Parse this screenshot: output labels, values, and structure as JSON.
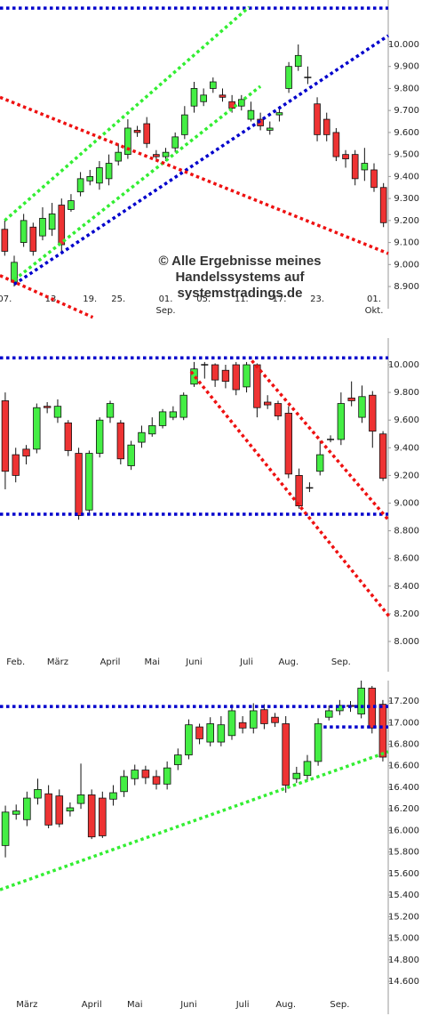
{
  "chart_data": [
    {
      "type": "candlestick",
      "up_color": "#44ee44",
      "down_color": "#ee3333",
      "annotation": [
        "© Alle Ergebnisse meines",
        "Handelssystems auf",
        "systemstradings.de"
      ],
      "categories": [
        "07.",
        null,
        null,
        null,
        null,
        "13.",
        null,
        null,
        null,
        "19.",
        null,
        null,
        "25.",
        null,
        null,
        null,
        null,
        "01.\nSep.",
        null,
        null,
        null,
        "05.",
        null,
        null,
        null,
        "11.",
        null,
        null,
        null,
        "17.",
        null,
        null,
        null,
        "23.",
        null,
        null,
        null,
        null,
        null,
        "01.\nOkt.",
        null
      ],
      "open": [
        9160,
        8920,
        9100,
        9170,
        9130,
        9160,
        9270,
        9250,
        9330,
        9380,
        9370,
        9390,
        9470,
        9500,
        9610,
        9640,
        9500,
        9490,
        9530,
        9590,
        9720,
        9740,
        9800,
        9770,
        9740,
        9720,
        9660,
        9660,
        9610,
        9680,
        9800,
        9900,
        9850,
        9730,
        9660,
        9600,
        9500,
        9500,
        9430,
        9430,
        9350
      ],
      "high": [
        9200,
        9040,
        9230,
        9190,
        9260,
        9280,
        9300,
        9320,
        9420,
        9430,
        9470,
        9500,
        9550,
        9660,
        9630,
        9670,
        9520,
        9530,
        9600,
        9720,
        9830,
        9800,
        9850,
        9800,
        9770,
        9770,
        9740,
        9690,
        9650,
        9720,
        9920,
        10000,
        9900,
        9760,
        9690,
        9620,
        9520,
        9520,
        9530,
        9460,
        9370
      ],
      "low": [
        9040,
        8900,
        9080,
        9040,
        9110,
        9130,
        9060,
        9240,
        9310,
        9360,
        9340,
        9360,
        9450,
        9480,
        9580,
        9530,
        9470,
        9470,
        9510,
        9570,
        9690,
        9720,
        9780,
        9740,
        9690,
        9700,
        9650,
        9610,
        9590,
        9650,
        9780,
        9880,
        9820,
        9560,
        9560,
        9470,
        9440,
        9360,
        9380,
        9330,
        9170
      ],
      "close": [
        9060,
        9010,
        9200,
        9060,
        9210,
        9230,
        9090,
        9290,
        9390,
        9400,
        9440,
        9460,
        9510,
        9620,
        9600,
        9550,
        9490,
        9510,
        9580,
        9680,
        9800,
        9770,
        9830,
        9760,
        9710,
        9750,
        9700,
        9630,
        9620,
        9690,
        9900,
        9950,
        9850,
        9590,
        9590,
        9490,
        9480,
        9390,
        9460,
        9350,
        9190
      ],
      "ylim": [
        8880,
        10202
      ],
      "yticks": [
        {
          "value": 8900,
          "label": "8.900"
        },
        {
          "value": 9000,
          "label": "9.000"
        },
        {
          "value": 9100,
          "label": "9.100"
        },
        {
          "value": 9200,
          "label": "9.200"
        },
        {
          "value": 9300,
          "label": "9.300"
        },
        {
          "value": 9400,
          "label": "9.400"
        },
        {
          "value": 9500,
          "label": "9.500"
        },
        {
          "value": 9600,
          "label": "9.600"
        },
        {
          "value": 9700,
          "label": "9.700"
        },
        {
          "value": 9800,
          "label": "9.800"
        },
        {
          "value": 9900,
          "label": "9.900"
        },
        {
          "value": 10000,
          "label": "10.000"
        }
      ],
      "trend_lines": [
        {
          "color": "#0000cc",
          "x": [
            -0.5,
            40.5
          ],
          "y": [
            10165,
            10165
          ]
        },
        {
          "color": "#33ee33",
          "x": [
            0,
            25.8
          ],
          "y": [
            9200,
            10170
          ]
        },
        {
          "color": "#33ee33",
          "x": [
            1,
            27
          ],
          "y": [
            8930,
            9810
          ]
        },
        {
          "color": "#0000cc",
          "x": [
            1,
            40.5
          ],
          "y": [
            8910,
            10040
          ]
        },
        {
          "color": "#ee1111",
          "x": [
            -0.5,
            40.5
          ],
          "y": [
            9760,
            9050
          ]
        },
        {
          "color": "#ee1111",
          "x": [
            -0.5,
            9.3
          ],
          "y": [
            8950,
            8760
          ]
        }
      ]
    },
    {
      "type": "candlestick",
      "up_color": "#44ee44",
      "down_color": "#ee3333",
      "categories": [
        null,
        "Feb.",
        null,
        null,
        null,
        "März",
        null,
        null,
        null,
        null,
        "April",
        null,
        null,
        null,
        "Mai",
        null,
        null,
        null,
        "Juni",
        null,
        null,
        null,
        null,
        "Juli",
        null,
        null,
        null,
        "Aug.",
        null,
        null,
        null,
        null,
        "Sep.",
        null,
        null,
        null,
        null
      ],
      "open": [
        9740,
        9350,
        9390,
        9390,
        9700,
        9620,
        9580,
        9360,
        8950,
        9360,
        9620,
        9580,
        9270,
        9440,
        9500,
        9560,
        9620,
        9620,
        9860,
        10000,
        10000,
        9960,
        10000,
        9840,
        10000,
        9730,
        9720,
        9650,
        9200,
        9110,
        9230,
        9460,
        9460,
        9760,
        9620,
        9780,
        9500
      ],
      "high": [
        9800,
        9400,
        9420,
        9720,
        9730,
        9750,
        9600,
        9400,
        9380,
        9620,
        9740,
        9600,
        9450,
        9560,
        9620,
        9680,
        9700,
        9800,
        10020,
        10020,
        10010,
        10000,
        10020,
        10020,
        10010,
        9780,
        9740,
        9700,
        9250,
        9150,
        9450,
        9490,
        9800,
        9880,
        9850,
        9810,
        9520
      ],
      "low": [
        9100,
        9150,
        9280,
        9360,
        9650,
        9580,
        9340,
        8880,
        8930,
        9330,
        9580,
        9280,
        9240,
        9400,
        9480,
        9540,
        9600,
        9600,
        9840,
        9900,
        9840,
        9830,
        9780,
        9800,
        9620,
        9680,
        9600,
        9180,
        8960,
        9080,
        9200,
        9440,
        9420,
        9700,
        9580,
        9400,
        9160
      ],
      "close": [
        9230,
        9200,
        9340,
        9690,
        9690,
        9700,
        9380,
        8910,
        9360,
        9600,
        9720,
        9320,
        9420,
        9510,
        9560,
        9660,
        9660,
        9780,
        9970,
        10000,
        9890,
        9880,
        9820,
        10000,
        9690,
        9710,
        9630,
        9210,
        8980,
        9110,
        9350,
        9460,
        9720,
        9740,
        9770,
        9520,
        9180
      ],
      "ylim": [
        7910,
        10193
      ],
      "yticks": [
        {
          "value": 8000,
          "label": "8.000"
        },
        {
          "value": 8200,
          "label": "8.200"
        },
        {
          "value": 8400,
          "label": "8.400"
        },
        {
          "value": 8600,
          "label": "8.600"
        },
        {
          "value": 8800,
          "label": "8.800"
        },
        {
          "value": 9000,
          "label": "9.000"
        },
        {
          "value": 9200,
          "label": "9.200"
        },
        {
          "value": 9400,
          "label": "9.400"
        },
        {
          "value": 9600,
          "label": "9.600"
        },
        {
          "value": 9800,
          "label": "9.800"
        },
        {
          "value": 10000,
          "label": "10.000"
        }
      ],
      "trend_lines": [
        {
          "color": "#0000cc",
          "x": [
            -0.5,
            36.5
          ],
          "y": [
            10050,
            10050
          ]
        },
        {
          "color": "#0000cc",
          "x": [
            -0.5,
            36.5
          ],
          "y": [
            8920,
            8920
          ]
        },
        {
          "color": "#ee1111",
          "x": [
            23.5,
            36.5
          ],
          "y": [
            10030,
            8880
          ]
        },
        {
          "color": "#ee1111",
          "x": [
            17.7,
            36.6
          ],
          "y": [
            9950,
            8180
          ]
        }
      ]
    },
    {
      "type": "candlestick",
      "up_color": "#44ee44",
      "down_color": "#ee3333",
      "categories": [
        null,
        null,
        "März",
        null,
        null,
        null,
        null,
        null,
        "April",
        null,
        null,
        null,
        "Mai",
        null,
        null,
        null,
        null,
        "Juni",
        null,
        null,
        null,
        null,
        "Juli",
        null,
        null,
        null,
        "Aug.",
        null,
        null,
        null,
        null,
        "Sep.",
        null,
        null,
        null,
        null
      ],
      "open": [
        15860,
        16150,
        16100,
        16300,
        16340,
        16320,
        16180,
        16250,
        16330,
        16300,
        16290,
        16360,
        16480,
        16560,
        16500,
        16430,
        16610,
        16700,
        16960,
        16820,
        16820,
        16880,
        17000,
        16950,
        17120,
        17050,
        16990,
        16480,
        16510,
        16640,
        17050,
        17110,
        17160,
        17080,
        17320,
        17170
      ],
      "high": [
        16230,
        16240,
        16360,
        16480,
        16420,
        16380,
        16260,
        16620,
        16380,
        16360,
        16420,
        16560,
        16610,
        16600,
        16560,
        16640,
        16760,
        17030,
        16990,
        17050,
        17060,
        17170,
        17060,
        17180,
        17170,
        17090,
        17060,
        16590,
        16700,
        17040,
        17160,
        17210,
        17200,
        17390,
        17340,
        17210
      ],
      "low": [
        15750,
        16100,
        16040,
        16240,
        16020,
        16030,
        16130,
        16200,
        15920,
        15930,
        16230,
        16310,
        16420,
        16430,
        16380,
        16380,
        16560,
        16660,
        16800,
        16780,
        16780,
        16840,
        16900,
        16900,
        16940,
        16960,
        16350,
        16440,
        16460,
        16600,
        17020,
        17070,
        17100,
        17040,
        16900,
        16640
      ],
      "close": [
        16170,
        16180,
        16300,
        16380,
        16050,
        16060,
        16210,
        16330,
        15940,
        15950,
        16350,
        16500,
        16560,
        16490,
        16430,
        16580,
        16700,
        16980,
        16850,
        16990,
        16980,
        17110,
        16950,
        17110,
        16990,
        17000,
        16420,
        16530,
        16640,
        16990,
        17110,
        17160,
        17150,
        17320,
        16950,
        16680
      ],
      "ylim": [
        14460,
        17390
      ],
      "yticks": [
        {
          "value": 14600,
          "label": "14.600"
        },
        {
          "value": 14800,
          "label": "14.800"
        },
        {
          "value": 15000,
          "label": "15.000"
        },
        {
          "value": 15200,
          "label": "15.200"
        },
        {
          "value": 15400,
          "label": "15.400"
        },
        {
          "value": 15600,
          "label": "15.600"
        },
        {
          "value": 15800,
          "label": "15.800"
        },
        {
          "value": 16000,
          "label": "16.000"
        },
        {
          "value": 16200,
          "label": "16.200"
        },
        {
          "value": 16400,
          "label": "16.400"
        },
        {
          "value": 16600,
          "label": "16.600"
        },
        {
          "value": 16800,
          "label": "16.800"
        },
        {
          "value": 17000,
          "label": "17.000"
        },
        {
          "value": 17200,
          "label": "17.200"
        }
      ],
      "trend_lines": [
        {
          "color": "#0000cc",
          "x": [
            -0.5,
            35.5
          ],
          "y": [
            17150,
            17150
          ]
        },
        {
          "color": "#0000cc",
          "x": [
            29.5,
            35.5
          ],
          "y": [
            16960,
            16960
          ]
        },
        {
          "color": "#33ee33",
          "x": [
            -0.5,
            35.5
          ],
          "y": [
            15450,
            16730
          ]
        }
      ]
    }
  ]
}
